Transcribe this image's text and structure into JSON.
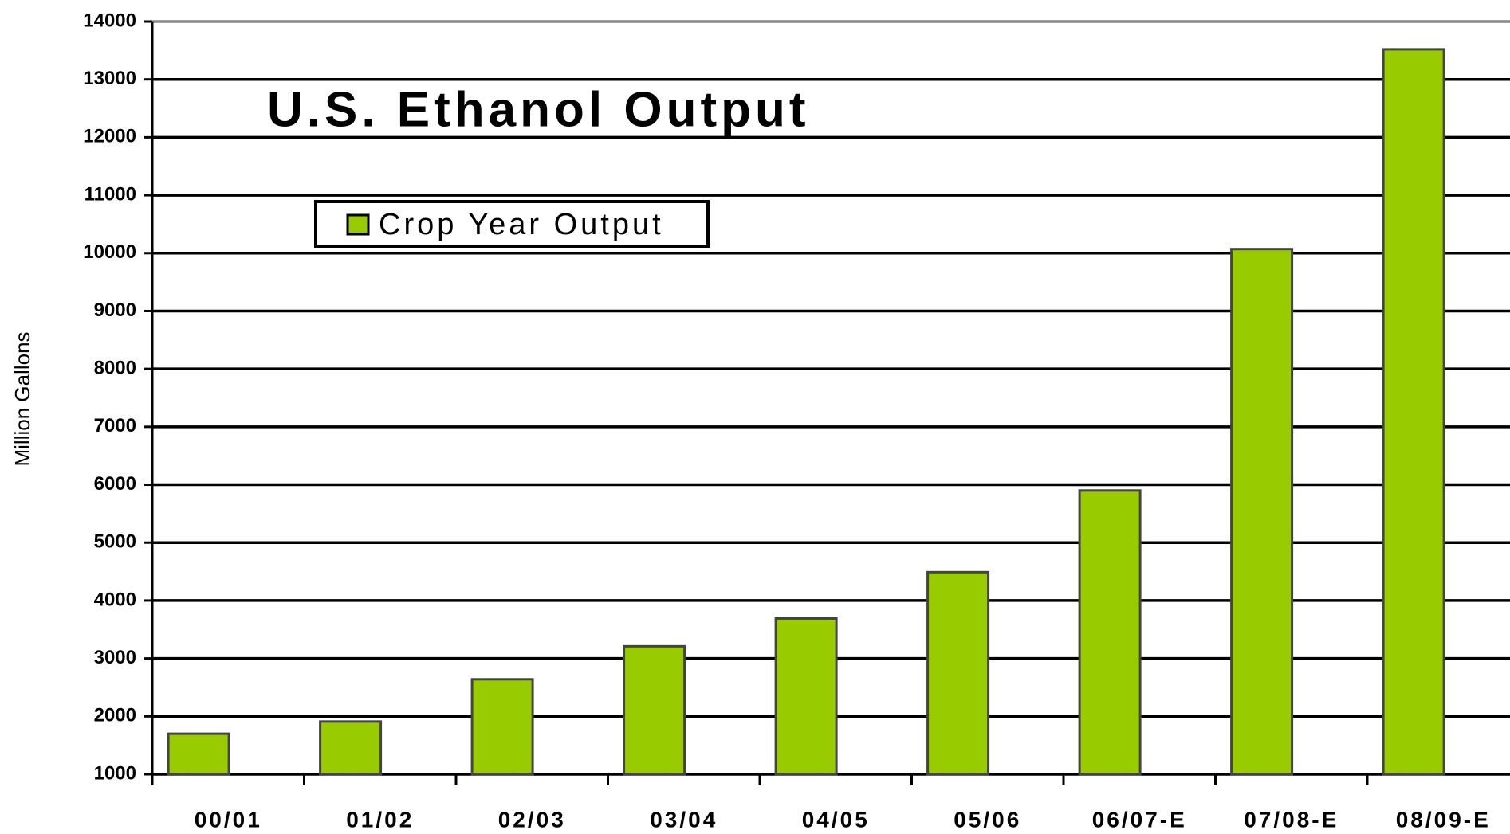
{
  "chart_data": {
    "type": "bar",
    "title": "U.S. Ethanol Output",
    "y_label": "Million Gallons",
    "categories": [
      "00/01",
      "01/02",
      "02/03",
      "03/04",
      "04/05",
      "05/06",
      "06/07-E",
      "07/08-E",
      "08/09-E"
    ],
    "series": [
      {
        "name": "Crop Year Output",
        "color": "#99cc00",
        "values": [
          1700,
          1910,
          2640,
          3210,
          3690,
          4490,
          5900,
          10070,
          13520
        ]
      }
    ],
    "ylim": [
      1000,
      14000
    ],
    "yticks": [
      1000,
      2000,
      3000,
      4000,
      5000,
      6000,
      7000,
      8000,
      9000,
      10000,
      11000,
      12000,
      13000,
      14000
    ],
    "grid": true,
    "legend": "upper left"
  }
}
